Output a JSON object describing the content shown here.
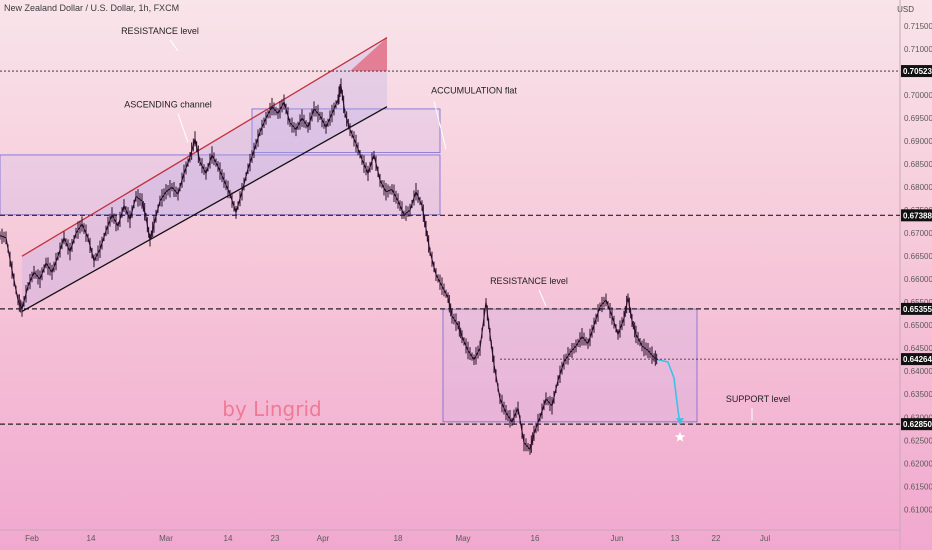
{
  "header": {
    "title": "New Zealand Dollar / U.S. Dollar, 1h, FXCM",
    "currency": "USD"
  },
  "watermark": "by Lingrid",
  "colors": {
    "candle": "#2a0f2a",
    "channel_upper": "#c0323c",
    "channel_lower": "#111111",
    "box_stroke": "#7367d6",
    "box_fill": "rgba(185,170,245,0.18)",
    "channel_fill": "rgba(180,170,235,0.28)",
    "projection": "#3ec1e6",
    "level_line": "#222222",
    "price_label_bg": "#111111",
    "triangle_fill": "rgba(225,60,80,0.55)"
  },
  "chart_data": {
    "type": "line",
    "title": "New Zealand Dollar / U.S. Dollar, 1h, FXCM",
    "xlabel": "",
    "ylabel": "USD",
    "x_range": [
      0,
      900
    ],
    "ylim": [
      0.6055,
      0.7185
    ],
    "x_ticks": [
      {
        "label": "Feb",
        "x": 32
      },
      {
        "label": "14",
        "x": 91
      },
      {
        "label": "Mar",
        "x": 166
      },
      {
        "label": "14",
        "x": 228
      },
      {
        "label": "23",
        "x": 275
      },
      {
        "label": "Apr",
        "x": 323
      },
      {
        "label": "18",
        "x": 398
      },
      {
        "label": "May",
        "x": 463
      },
      {
        "label": "16",
        "x": 535
      },
      {
        "label": "Jun",
        "x": 617
      },
      {
        "label": "13",
        "x": 675
      },
      {
        "label": "22",
        "x": 716
      },
      {
        "label": "Jul",
        "x": 765
      }
    ],
    "y_ticks": [
      0.715,
      0.71,
      0.705,
      0.7,
      0.695,
      0.69,
      0.685,
      0.68,
      0.675,
      0.67,
      0.665,
      0.66,
      0.655,
      0.65,
      0.645,
      0.64,
      0.635,
      0.63,
      0.625,
      0.62,
      0.615,
      0.61
    ],
    "y_tick_labels": [
      "0.71500",
      "0.71000",
      "0.70500",
      "0.70000",
      "0.69500",
      "0.69000",
      "0.68500",
      "0.68000",
      "0.67500",
      "0.67000",
      "0.66500",
      "0.66000",
      "0.65500",
      "0.65000",
      "0.64500",
      "0.64000",
      "0.63500",
      "0.63000",
      "0.62500",
      "0.62000",
      "0.61500",
      "0.61000"
    ],
    "price_series": [
      [
        0,
        0.6695
      ],
      [
        6,
        0.669
      ],
      [
        12,
        0.662
      ],
      [
        18,
        0.6555
      ],
      [
        22,
        0.6535
      ],
      [
        28,
        0.6585
      ],
      [
        34,
        0.6615
      ],
      [
        40,
        0.66
      ],
      [
        46,
        0.6635
      ],
      [
        52,
        0.6615
      ],
      [
        58,
        0.665
      ],
      [
        64,
        0.669
      ],
      [
        70,
        0.666
      ],
      [
        76,
        0.67
      ],
      [
        82,
        0.672
      ],
      [
        88,
        0.669
      ],
      [
        94,
        0.664
      ],
      [
        100,
        0.6665
      ],
      [
        106,
        0.6705
      ],
      [
        112,
        0.674
      ],
      [
        118,
        0.6715
      ],
      [
        124,
        0.676
      ],
      [
        130,
        0.673
      ],
      [
        136,
        0.678
      ],
      [
        142,
        0.677
      ],
      [
        146,
        0.6735
      ],
      [
        150,
        0.6685
      ],
      [
        154,
        0.672
      ],
      [
        160,
        0.677
      ],
      [
        166,
        0.679
      ],
      [
        172,
        0.68
      ],
      [
        178,
        0.6785
      ],
      [
        184,
        0.683
      ],
      [
        190,
        0.6865
      ],
      [
        195,
        0.6905
      ],
      [
        200,
        0.6855
      ],
      [
        206,
        0.683
      ],
      [
        212,
        0.687
      ],
      [
        218,
        0.6845
      ],
      [
        224,
        0.6815
      ],
      [
        230,
        0.6785
      ],
      [
        236,
        0.6745
      ],
      [
        242,
        0.679
      ],
      [
        248,
        0.684
      ],
      [
        254,
        0.688
      ],
      [
        260,
        0.692
      ],
      [
        266,
        0.695
      ],
      [
        272,
        0.6975
      ],
      [
        278,
        0.696
      ],
      [
        284,
        0.6985
      ],
      [
        290,
        0.694
      ],
      [
        296,
        0.6925
      ],
      [
        302,
        0.695
      ],
      [
        308,
        0.693
      ],
      [
        314,
        0.697
      ],
      [
        320,
        0.6955
      ],
      [
        326,
        0.693
      ],
      [
        332,
        0.696
      ],
      [
        338,
        0.699
      ],
      [
        341,
        0.702
      ],
      [
        345,
        0.696
      ],
      [
        350,
        0.6925
      ],
      [
        356,
        0.6895
      ],
      [
        362,
        0.686
      ],
      [
        368,
        0.683
      ],
      [
        374,
        0.687
      ],
      [
        380,
        0.6815
      ],
      [
        386,
        0.679
      ],
      [
        392,
        0.6795
      ],
      [
        398,
        0.677
      ],
      [
        404,
        0.674
      ],
      [
        410,
        0.675
      ],
      [
        416,
        0.679
      ],
      [
        422,
        0.676
      ],
      [
        426,
        0.671
      ],
      [
        430,
        0.666
      ],
      [
        436,
        0.661
      ],
      [
        442,
        0.6585
      ],
      [
        448,
        0.656
      ],
      [
        452,
        0.652
      ],
      [
        458,
        0.65
      ],
      [
        462,
        0.6475
      ],
      [
        468,
        0.6445
      ],
      [
        474,
        0.6425
      ],
      [
        480,
        0.645
      ],
      [
        486,
        0.655
      ],
      [
        490,
        0.648
      ],
      [
        494,
        0.6415
      ],
      [
        500,
        0.634
      ],
      [
        506,
        0.631
      ],
      [
        512,
        0.629
      ],
      [
        518,
        0.632
      ],
      [
        524,
        0.6245
      ],
      [
        530,
        0.623
      ],
      [
        534,
        0.6265
      ],
      [
        540,
        0.63
      ],
      [
        546,
        0.634
      ],
      [
        552,
        0.6325
      ],
      [
        558,
        0.638
      ],
      [
        564,
        0.642
      ],
      [
        570,
        0.644
      ],
      [
        576,
        0.6455
      ],
      [
        582,
        0.6475
      ],
      [
        588,
        0.646
      ],
      [
        594,
        0.65
      ],
      [
        600,
        0.654
      ],
      [
        606,
        0.6555
      ],
      [
        612,
        0.652
      ],
      [
        618,
        0.648
      ],
      [
        624,
        0.6515
      ],
      [
        628,
        0.656
      ],
      [
        632,
        0.651
      ],
      [
        636,
        0.648
      ],
      [
        642,
        0.6455
      ],
      [
        648,
        0.6445
      ],
      [
        654,
        0.643
      ],
      [
        658,
        0.6425
      ]
    ],
    "projection": [
      [
        658,
        0.6425
      ],
      [
        668,
        0.642
      ],
      [
        674,
        0.6385
      ],
      [
        678,
        0.6315
      ],
      [
        680,
        0.6285
      ]
    ],
    "levels": [
      {
        "label": "0.70523",
        "value": 0.70523,
        "style": "dotted"
      },
      {
        "label": "0.67388",
        "value": 0.67388,
        "style": "dashed"
      },
      {
        "label": "0.65355",
        "value": 0.65355,
        "style": "dashed"
      },
      {
        "label": "0.64264",
        "value": 0.64264,
        "style": "dotted-thin"
      },
      {
        "label": "0.62850",
        "value": 0.6285,
        "style": "dashed"
      }
    ],
    "channel": {
      "upper": [
        [
          22,
          0.665
        ],
        [
          387,
          0.7125
        ]
      ],
      "lower": [
        [
          22,
          0.653
        ],
        [
          387,
          0.6975
        ]
      ]
    },
    "zones": [
      {
        "x0": 252,
        "x1": 440,
        "y_top": 0.697,
        "y_bot": 0.6875
      },
      {
        "x0": 0,
        "x1": 440,
        "y_top": 0.687,
        "y_bot": 0.674
      },
      {
        "x0": 443,
        "x1": 697,
        "y_top": 0.6535,
        "y_bot": 0.629
      }
    ],
    "annotations": [
      {
        "text": "RESISTANCE level",
        "x": 160,
        "y": 0.7133
      },
      {
        "text": "ASCENDING channel",
        "x": 168,
        "y": 0.6973
      },
      {
        "text": "ACCUMULATION flat",
        "x": 474,
        "y": 0.7004
      },
      {
        "text": "RESISTANCE level",
        "x": 529,
        "y": 0.659
      },
      {
        "text": "SUPPORT level",
        "x": 758,
        "y": 0.6333
      }
    ]
  }
}
